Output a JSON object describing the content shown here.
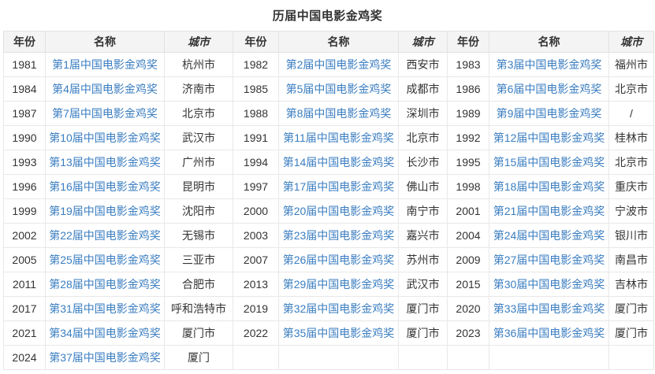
{
  "title": "历届中国电影金鸡奖",
  "columns": [
    "年份",
    "名称",
    "城市",
    "年份",
    "名称",
    "城市",
    "年份",
    "名称",
    "城市"
  ],
  "link_color": "#3b7ec1",
  "header_bg": "#f4f4f4",
  "rows": [
    [
      {
        "year": "1981",
        "name": "第1届中国电影金鸡奖",
        "city": "杭州市"
      },
      {
        "year": "1982",
        "name": "第2届中国电影金鸡奖",
        "city": "西安市"
      },
      {
        "year": "1983",
        "name": "第3届中国电影金鸡奖",
        "city": "福州市"
      }
    ],
    [
      {
        "year": "1984",
        "name": "第4届中国电影金鸡奖",
        "city": "济南市"
      },
      {
        "year": "1985",
        "name": "第5届中国电影金鸡奖",
        "city": "成都市"
      },
      {
        "year": "1986",
        "name": "第6届中国电影金鸡奖",
        "city": "北京市"
      }
    ],
    [
      {
        "year": "1987",
        "name": "第7届中国电影金鸡奖",
        "city": "北京市"
      },
      {
        "year": "1988",
        "name": "第8届中国电影金鸡奖",
        "city": "深圳市"
      },
      {
        "year": "1989",
        "name": "第9届中国电影金鸡奖",
        "city": "/"
      }
    ],
    [
      {
        "year": "1990",
        "name": "第10届中国电影金鸡奖",
        "city": "武汉市"
      },
      {
        "year": "1991",
        "name": "第11届中国电影金鸡奖",
        "city": "北京市"
      },
      {
        "year": "1992",
        "name": "第12届中国电影金鸡奖",
        "city": "桂林市"
      }
    ],
    [
      {
        "year": "1993",
        "name": "第13届中国电影金鸡奖",
        "city": "广州市"
      },
      {
        "year": "1994",
        "name": "第14届中国电影金鸡奖",
        "city": "长沙市"
      },
      {
        "year": "1995",
        "name": "第15届中国电影金鸡奖",
        "city": "北京市"
      }
    ],
    [
      {
        "year": "1996",
        "name": "第16届中国电影金鸡奖",
        "city": "昆明市"
      },
      {
        "year": "1997",
        "name": "第17届中国电影金鸡奖",
        "city": "佛山市"
      },
      {
        "year": "1998",
        "name": "第18届中国电影金鸡奖",
        "city": "重庆市"
      }
    ],
    [
      {
        "year": "1999",
        "name": "第19届中国电影金鸡奖",
        "city": "沈阳市"
      },
      {
        "year": "2000",
        "name": "第20届中国电影金鸡奖",
        "city": "南宁市"
      },
      {
        "year": "2001",
        "name": "第21届中国电影金鸡奖",
        "city": "宁波市"
      }
    ],
    [
      {
        "year": "2002",
        "name": "第22届中国电影金鸡奖",
        "city": "无锡市"
      },
      {
        "year": "2003",
        "name": "第23届中国电影金鸡奖",
        "city": "嘉兴市"
      },
      {
        "year": "2004",
        "name": "第24届中国电影金鸡奖",
        "city": "银川市"
      }
    ],
    [
      {
        "year": "2005",
        "name": "第25届中国电影金鸡奖",
        "city": "三亚市"
      },
      {
        "year": "2007",
        "name": "第26届中国电影金鸡奖",
        "city": "苏州市"
      },
      {
        "year": "2009",
        "name": "第27届中国电影金鸡奖",
        "city": "南昌市"
      }
    ],
    [
      {
        "year": "2011",
        "name": "第28届中国电影金鸡奖",
        "city": "合肥市"
      },
      {
        "year": "2013",
        "name": "第29届中国电影金鸡奖",
        "city": "武汉市"
      },
      {
        "year": "2015",
        "name": "第30届中国电影金鸡奖",
        "city": "吉林市"
      }
    ],
    [
      {
        "year": "2017",
        "name": "第31届中国电影金鸡奖",
        "city": "呼和浩特市"
      },
      {
        "year": "2019",
        "name": "第32届中国电影金鸡奖",
        "city": "厦门市"
      },
      {
        "year": "2020",
        "name": "第33届中国电影金鸡奖",
        "city": "厦门市"
      }
    ],
    [
      {
        "year": "2021",
        "name": "第34届中国电影金鸡奖",
        "city": "厦门市"
      },
      {
        "year": "2022",
        "name": "第35届中国电影金鸡奖",
        "city": "厦门市"
      },
      {
        "year": "2023",
        "name": "第36届中国电影金鸡奖",
        "city": "厦门市"
      }
    ],
    [
      {
        "year": "2024",
        "name": "第37届中国电影金鸡奖",
        "city": "厦门"
      },
      {
        "year": "",
        "name": "",
        "city": ""
      },
      {
        "year": "",
        "name": "",
        "city": ""
      }
    ]
  ]
}
